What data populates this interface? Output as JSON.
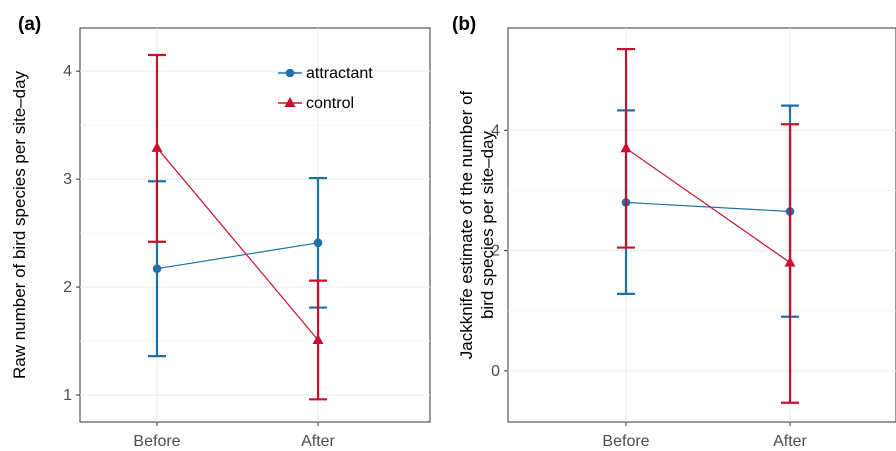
{
  "chart_data": [
    {
      "panel_label": "(a)",
      "type": "line",
      "categories": [
        "Before",
        "After"
      ],
      "ylabel": "Raw number of bird species per site–day",
      "xlabel": "",
      "ylim": [
        0.75,
        4.4
      ],
      "yticks": [
        1,
        2,
        3,
        4
      ],
      "grid": true,
      "legend": {
        "position": "top-right",
        "entries": [
          "attractant",
          "control"
        ]
      },
      "series": [
        {
          "name": "attractant",
          "color": "#1f6fa8",
          "marker": "circle",
          "values": [
            2.17,
            2.41
          ],
          "lower": [
            1.36,
            1.81
          ],
          "upper": [
            2.98,
            3.01
          ]
        },
        {
          "name": "control",
          "color": "#c8102e",
          "marker": "triangle",
          "values": [
            3.29,
            1.51
          ],
          "lower": [
            2.42,
            0.96
          ],
          "upper": [
            4.15,
            2.06
          ]
        }
      ]
    },
    {
      "panel_label": "(b)",
      "type": "line",
      "categories": [
        "Before",
        "After"
      ],
      "ylabel": "Jackknife estimate of the number of bird species per site–day",
      "ylabel_lines": [
        "Jackknife estimate of the number of",
        "bird species per site–day"
      ],
      "xlabel": "",
      "ylim": [
        -0.85,
        5.7
      ],
      "yticks": [
        0,
        2,
        4
      ],
      "grid": true,
      "series": [
        {
          "name": "attractant",
          "color": "#1f6fa8",
          "marker": "circle",
          "values": [
            2.8,
            2.65
          ],
          "lower": [
            1.28,
            0.9
          ],
          "upper": [
            4.33,
            4.41
          ]
        },
        {
          "name": "control",
          "color": "#c8102e",
          "marker": "triangle",
          "values": [
            3.7,
            1.8
          ],
          "lower": [
            2.05,
            -0.53
          ],
          "upper": [
            5.35,
            4.1
          ]
        }
      ]
    }
  ]
}
